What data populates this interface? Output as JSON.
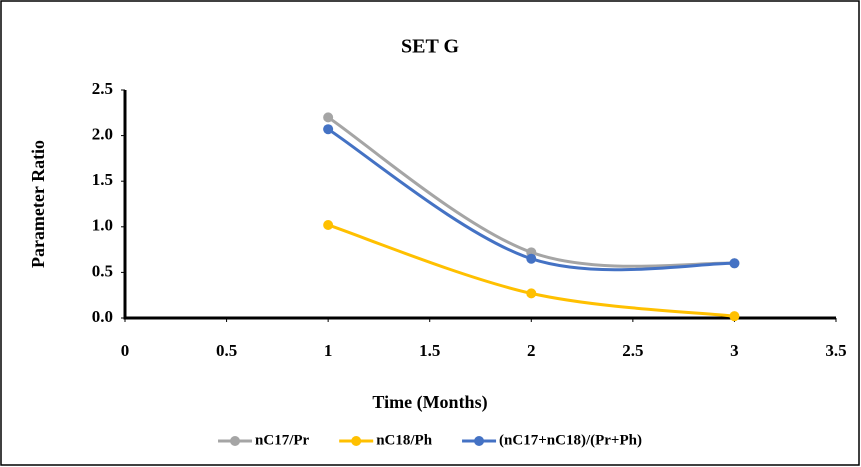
{
  "chart_data": {
    "type": "line",
    "title": "SET G",
    "x_label": "Time (Months)",
    "y_label": "Parameter Ratio",
    "x": [
      1,
      2,
      3
    ],
    "series": [
      {
        "name": "nC17/Pr",
        "color": "#a5a5a5",
        "values": [
          2.2,
          0.72,
          0.6
        ]
      },
      {
        "name": "nC18/Ph",
        "color": "#ffc000",
        "values": [
          1.02,
          0.27,
          0.02
        ]
      },
      {
        "name": "(nC17+nC18)/(Pr+Ph)",
        "color": "#4472c4",
        "values": [
          2.07,
          0.65,
          0.6
        ]
      }
    ],
    "xlim": [
      0,
      3.5
    ],
    "xticks": [
      0,
      0.5,
      1,
      1.5,
      2,
      2.5,
      3,
      3.5
    ],
    "ylim": [
      0,
      2.5
    ],
    "yticks": [
      {
        "value": 0,
        "label": "0.0"
      },
      0.5,
      {
        "value": 1,
        "label": "1.0"
      },
      1.5,
      {
        "value": 2,
        "label": "2.0"
      },
      2.5
    ],
    "smooth": true,
    "grid": false,
    "legend": "bottom"
  }
}
